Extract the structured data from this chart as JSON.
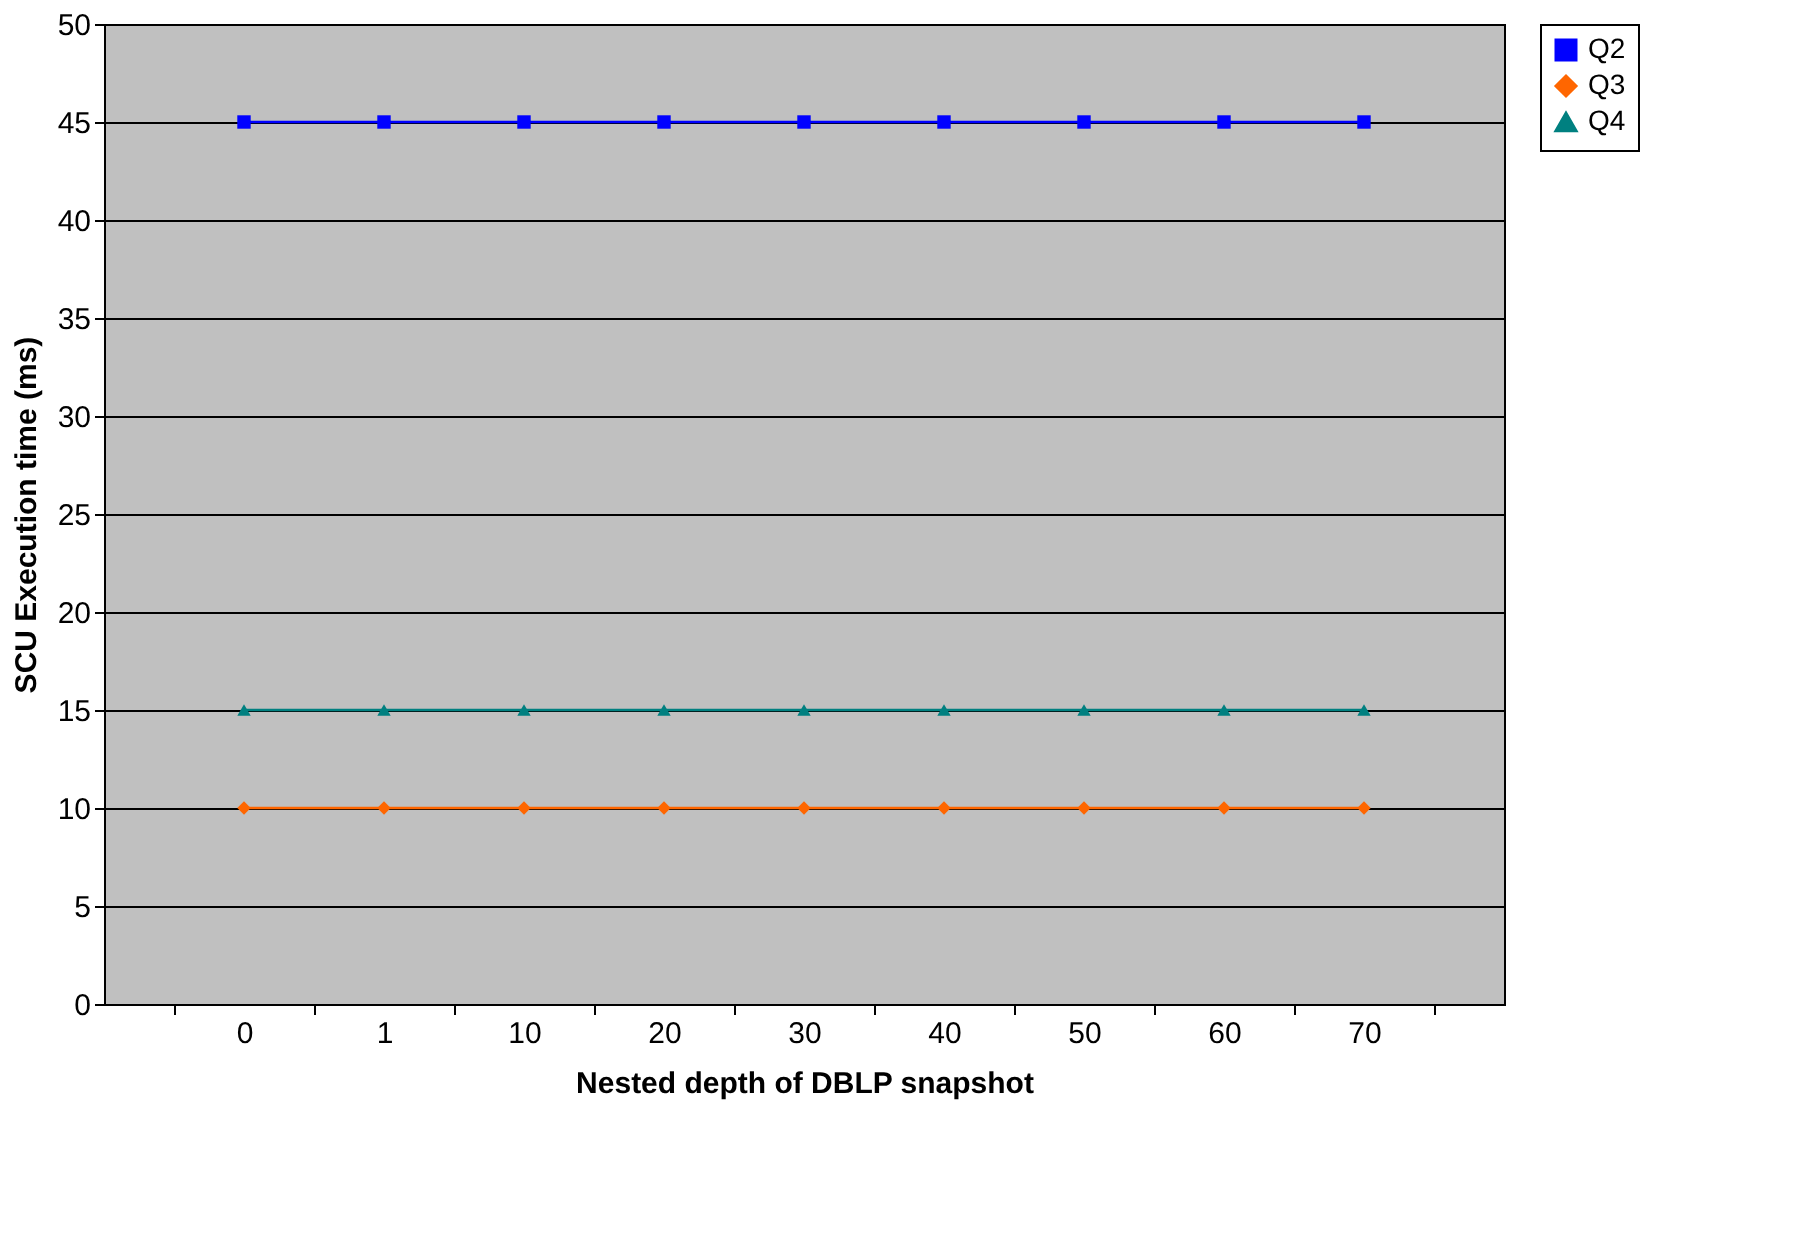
{
  "chart_data": {
    "type": "line",
    "xlabel": "Nested depth of DBLP snapshot",
    "ylabel": "SCU Execution time (ms)",
    "categories": [
      "0",
      "1",
      "10",
      "20",
      "30",
      "40",
      "50",
      "60",
      "70"
    ],
    "series": [
      {
        "name": "Q2",
        "color": "#0000ff",
        "marker": "square",
        "values": [
          45,
          45,
          45,
          45,
          45,
          45,
          45,
          45,
          45
        ]
      },
      {
        "name": "Q3",
        "color": "#ff6600",
        "marker": "diamond",
        "values": [
          10,
          10,
          10,
          10,
          10,
          10,
          10,
          10,
          10
        ]
      },
      {
        "name": "Q4",
        "color": "#008080",
        "marker": "triangle",
        "values": [
          15,
          15,
          15,
          15,
          15,
          15,
          15,
          15,
          15
        ]
      }
    ],
    "ylim": [
      0,
      50
    ],
    "yticks": [
      0,
      5,
      10,
      15,
      20,
      25,
      30,
      35,
      40,
      45,
      50
    ],
    "grid": "y",
    "legend": "right",
    "line_style": "solid"
  }
}
